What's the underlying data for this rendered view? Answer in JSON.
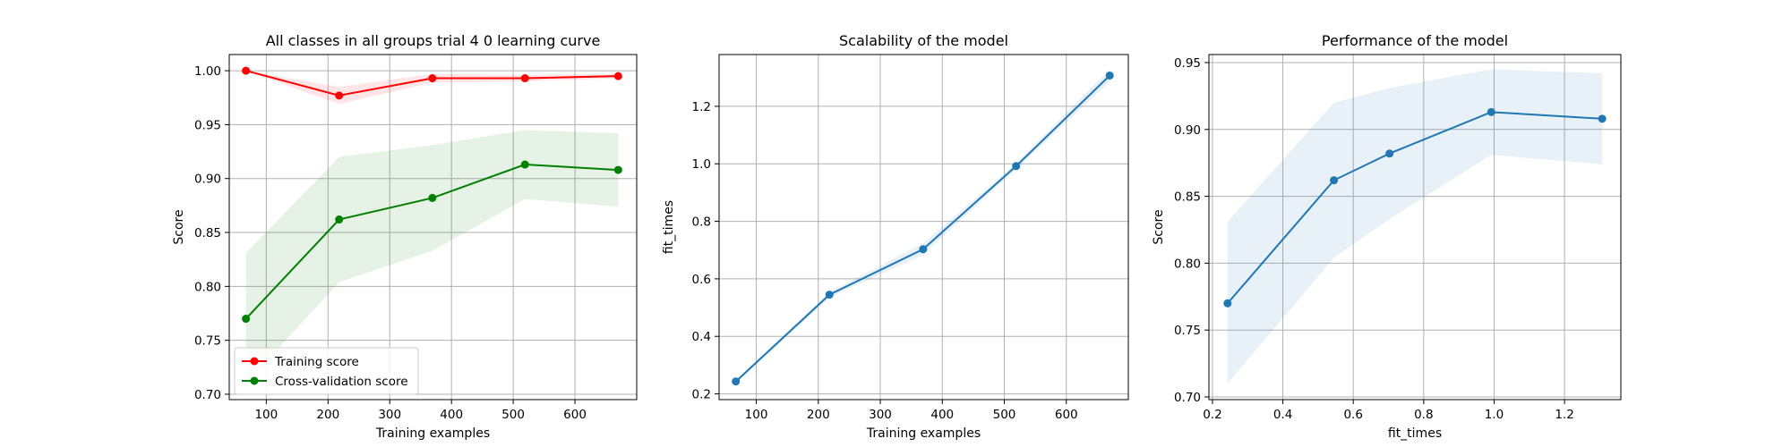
{
  "chart_data": [
    {
      "type": "line",
      "title": "All classes in all groups trial 4 0 learning curve",
      "xlabel": "Training examples",
      "ylabel": "Score",
      "xlim": [
        40,
        700
      ],
      "ylim": [
        0.695,
        1.015
      ],
      "xticks": [
        100,
        200,
        300,
        400,
        500,
        600
      ],
      "yticks": [
        0.7,
        0.75,
        0.8,
        0.85,
        0.9,
        0.95,
        1.0
      ],
      "grid": true,
      "legend": "lower-left",
      "series": [
        {
          "name": "Training score",
          "color": "#ff0000",
          "x": [
            67,
            218,
            369,
            519,
            670
          ],
          "y": [
            1.0,
            0.977,
            0.993,
            0.993,
            0.995
          ],
          "band_low": [
            1.0,
            0.969,
            0.989,
            0.99,
            0.993
          ],
          "band_high": [
            1.0,
            0.985,
            0.997,
            0.996,
            0.997
          ]
        },
        {
          "name": "Cross-validation score",
          "color": "#008000",
          "x": [
            67,
            218,
            369,
            519,
            670
          ],
          "y": [
            0.77,
            0.862,
            0.882,
            0.913,
            0.908
          ],
          "band_low": [
            0.71,
            0.804,
            0.833,
            0.881,
            0.874
          ],
          "band_high": [
            0.831,
            0.92,
            0.931,
            0.945,
            0.942
          ]
        }
      ]
    },
    {
      "type": "line",
      "title": "Scalability of the model",
      "xlabel": "Training examples",
      "ylabel": "fit_times",
      "xlim": [
        40,
        700
      ],
      "ylim": [
        0.18,
        1.38
      ],
      "xticks": [
        100,
        200,
        300,
        400,
        500,
        600
      ],
      "yticks": [
        0.2,
        0.4,
        0.6,
        0.8,
        1.0,
        1.2
      ],
      "grid": true,
      "series": [
        {
          "color": "#1f77b4",
          "x": [
            67,
            218,
            369,
            519,
            670
          ],
          "y": [
            0.243,
            0.545,
            0.703,
            0.992,
            1.307
          ],
          "band_low": [
            0.238,
            0.535,
            0.683,
            0.982,
            1.285
          ],
          "band_high": [
            0.248,
            0.555,
            0.723,
            1.002,
            1.329
          ]
        }
      ]
    },
    {
      "type": "line",
      "title": "Performance of the model",
      "xlabel": "fit_times",
      "ylabel": "Score",
      "xlim": [
        0.19,
        1.36
      ],
      "ylim": [
        0.698,
        0.956
      ],
      "xticks": [
        0.2,
        0.4,
        0.6,
        0.8,
        1.0,
        1.2
      ],
      "yticks": [
        0.7,
        0.75,
        0.8,
        0.85,
        0.9,
        0.95
      ],
      "grid": true,
      "series": [
        {
          "color": "#1f77b4",
          "x": [
            0.243,
            0.545,
            0.703,
            0.992,
            1.307
          ],
          "y": [
            0.77,
            0.862,
            0.882,
            0.913,
            0.908
          ],
          "band_low": [
            0.71,
            0.804,
            0.833,
            0.881,
            0.874
          ],
          "band_high": [
            0.831,
            0.92,
            0.931,
            0.945,
            0.942
          ]
        }
      ]
    }
  ]
}
